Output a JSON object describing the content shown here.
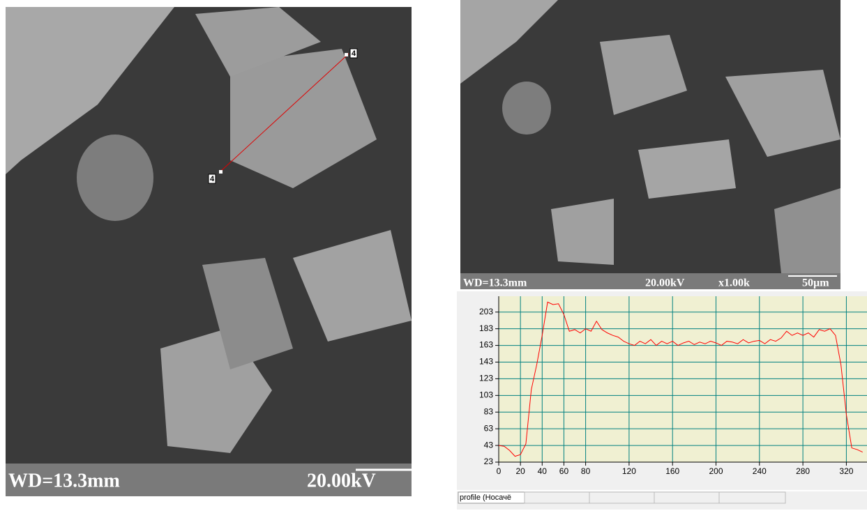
{
  "left_image": {
    "wd": "WD=13.3mm",
    "kv": "20.00kV",
    "marker_a": "4",
    "marker_b": "4"
  },
  "right_image": {
    "wd": "WD=13.3mm",
    "kv": "20.00kV",
    "mag": "x1.00k",
    "scale": "50µm"
  },
  "status": {
    "label": "profile (Носачё"
  },
  "chart_data": {
    "type": "line",
    "x": [
      0,
      5,
      10,
      15,
      20,
      25,
      30,
      35,
      40,
      45,
      50,
      55,
      60,
      65,
      70,
      75,
      80,
      85,
      90,
      95,
      100,
      105,
      110,
      115,
      120,
      125,
      130,
      135,
      140,
      145,
      150,
      155,
      160,
      165,
      170,
      175,
      180,
      185,
      190,
      195,
      200,
      205,
      210,
      215,
      220,
      225,
      230,
      235,
      240,
      245,
      250,
      255,
      260,
      265,
      270,
      275,
      280,
      285,
      290,
      295,
      300,
      305,
      310,
      315,
      320,
      325,
      330,
      335
    ],
    "series": [
      {
        "color": "#ff0000",
        "values": [
          43,
          42,
          37,
          30,
          32,
          45,
          110,
          140,
          175,
          215,
          212,
          213,
          200,
          180,
          182,
          178,
          183,
          180,
          192,
          182,
          178,
          175,
          173,
          168,
          165,
          163,
          168,
          165,
          170,
          163,
          168,
          165,
          168,
          163,
          166,
          168,
          164,
          167,
          165,
          168,
          166,
          163,
          168,
          167,
          165,
          170,
          166,
          168,
          169,
          165,
          170,
          168,
          172,
          180,
          175,
          178,
          175,
          178,
          173,
          182,
          180,
          183,
          175,
          140,
          80,
          40,
          38,
          35
        ]
      }
    ],
    "xlim": [
      0,
      339
    ],
    "ylim": [
      23,
      222
    ],
    "xticks": [
      0,
      20,
      40,
      60,
      80,
      120,
      160,
      200,
      240,
      280,
      320
    ],
    "yticks": [
      23,
      43,
      63,
      83,
      103,
      123,
      143,
      163,
      183,
      203
    ],
    "grid": true
  }
}
